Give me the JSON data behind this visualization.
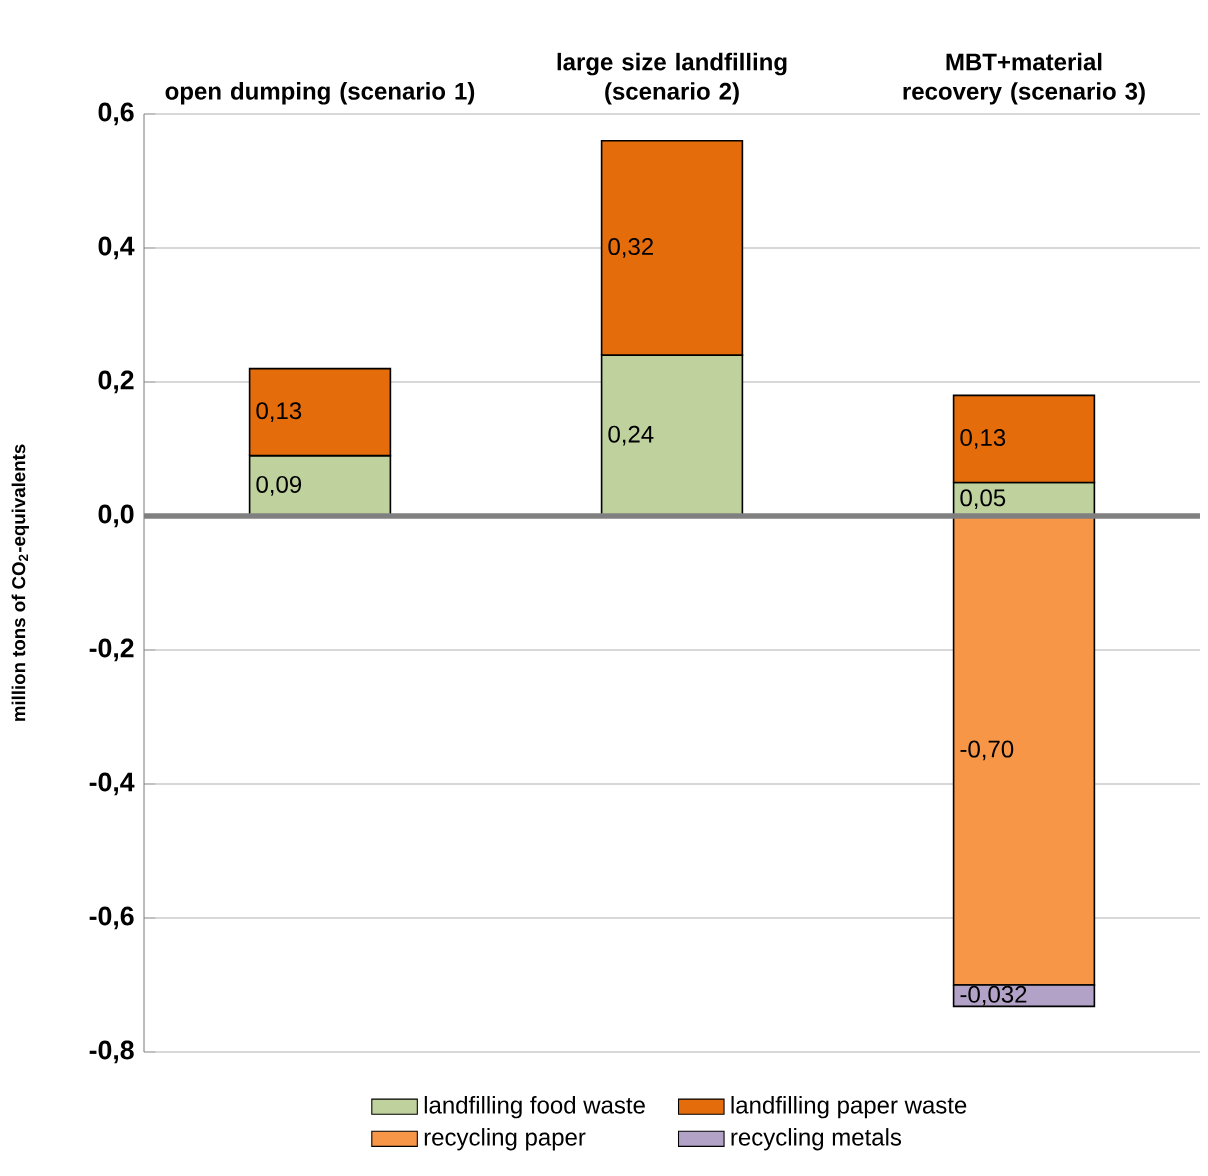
{
  "chart_data": {
    "type": "bar",
    "stacked": true,
    "categories": [
      "open dumping (scenario 1)",
      "large size landfilling (scenario 2)",
      "MBT+material recovery (scenario 3)"
    ],
    "ylabel": "million tons of CO$_{2}$-equivalents",
    "ylim": [
      -0.8,
      0.6
    ],
    "yticks": [
      {
        "value": -0.8,
        "label": "-0,8"
      },
      {
        "value": -0.6,
        "label": "-0,6"
      },
      {
        "value": -0.4,
        "label": "-0,4"
      },
      {
        "value": -0.2,
        "label": "-0,2"
      },
      {
        "value": 0,
        "label": "0,0"
      },
      {
        "value": 0.2,
        "label": "0,2"
      },
      {
        "value": 0.4,
        "label": "0,4"
      },
      {
        "value": 0.6,
        "label": "0,6"
      }
    ],
    "grid": "y",
    "legend": "bottom",
    "series": [
      {
        "name": "landfilling food waste",
        "color": "#bfd19d",
        "values": [
          0.09,
          0.24,
          0.05
        ],
        "value_labels": [
          "0,09",
          "0,24",
          "0,05"
        ]
      },
      {
        "name": "landfilling paper waste",
        "color": "#e46c0a",
        "values": [
          0.13,
          0.32,
          0.13
        ],
        "value_labels": [
          "0,13",
          "0,32",
          "0,13"
        ]
      },
      {
        "name": "recycling paper",
        "color": "#f79646",
        "values": [
          null,
          null,
          -0.7
        ],
        "value_labels": [
          null,
          null,
          "-0,70"
        ]
      },
      {
        "name": "recycling metals",
        "color": "#b3a2c7",
        "values": [
          null,
          null,
          -0.032
        ],
        "value_labels": [
          null,
          null,
          "-0,032"
        ]
      }
    ]
  }
}
